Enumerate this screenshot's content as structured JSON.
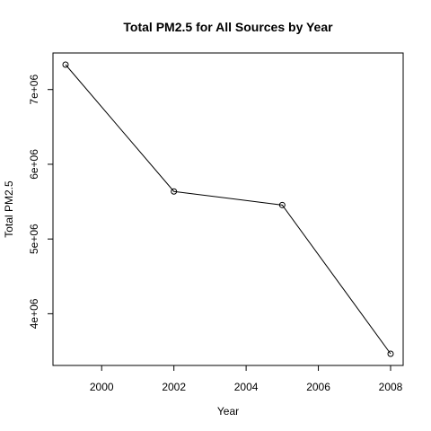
{
  "chart_data": {
    "type": "line",
    "title": "Total PM2.5 for All Sources by Year",
    "xlabel": "Year",
    "ylabel": "Total PM2.5",
    "x": [
      1999,
      2002,
      2005,
      2008
    ],
    "series": [
      {
        "values": [
          7332967,
          5635780,
          5454703,
          3464206
        ]
      }
    ],
    "xlim": [
      1999,
      2008
    ],
    "ylim": [
      3464206,
      7332967
    ],
    "x_ticks": [
      2000,
      2002,
      2004,
      2006,
      2008
    ],
    "x_tick_labels": [
      "2000",
      "2002",
      "2004",
      "2006",
      "2008"
    ],
    "y_ticks": [
      4000000,
      5000000,
      6000000,
      7000000
    ],
    "y_tick_labels": [
      "4e+06",
      "5e+06",
      "6e+06",
      "7e+06"
    ],
    "grid": false,
    "legend": "none",
    "marker": "open-circle",
    "line_color": "#000000"
  }
}
